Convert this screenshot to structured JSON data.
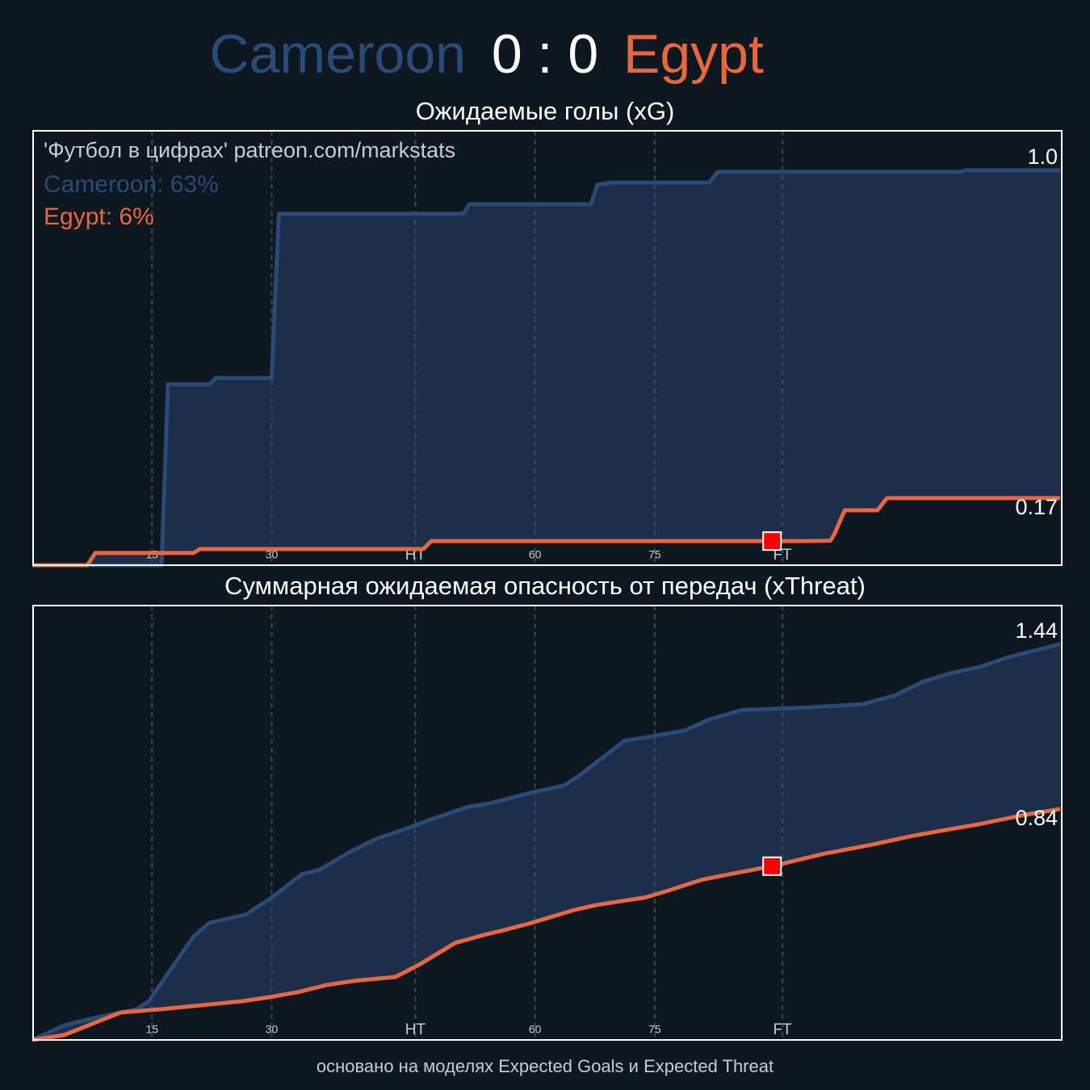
{
  "header": {
    "home": "Cameroon",
    "score": "0 : 0",
    "away": "Egypt",
    "home_color": "#2a4a78",
    "away_color": "#e8673f"
  },
  "footer": "основано на моделях Expected Goals и Expected Threat",
  "chart_data": [
    {
      "type": "line",
      "title": "Ожидаемые голы (xG)",
      "watermark": "'Футбол в цифрах' patreon.com/markstats",
      "xlim": [
        0,
        129
      ],
      "ylim": [
        0,
        1.1
      ],
      "xticks": [
        15,
        30,
        {
          "value": 48,
          "label": "HT"
        },
        {
          "value": 63,
          "label": "60"
        },
        {
          "value": 78,
          "label": "75"
        },
        {
          "value": 94,
          "label": "FT"
        }
      ],
      "fill_between": true,
      "fill_color": "#1c2e4a",
      "series": [
        {
          "label": "Cameroon: 63%",
          "color": "#2a4a78",
          "end_label": "1.0",
          "x": [
            0,
            16.2,
            17,
            22.2,
            23,
            30,
            30.9,
            54,
            54.8,
            70,
            70.8,
            72.7,
            84.8,
            85.9,
            116.2,
            117,
            128.8
          ],
          "values": [
            0,
            0,
            0.458,
            0.458,
            0.474,
            0.474,
            0.89,
            0.89,
            0.914,
            0.914,
            0.963,
            0.969,
            0.969,
            0.996,
            0.996,
            1.0,
            1.0
          ]
        },
        {
          "label": "Egypt: 6%",
          "color": "#e8673f",
          "end_label": "0.17",
          "x": [
            0,
            6.9,
            7.9,
            20.2,
            21,
            49,
            50,
            97,
            100,
            100.5,
            101.8,
            105.9,
            107.1,
            128.8
          ],
          "values": [
            0,
            0,
            0.031,
            0.031,
            0.041,
            0.041,
            0.061,
            0.061,
            0.062,
            0.078,
            0.139,
            0.139,
            0.17,
            0.17
          ]
        }
      ],
      "event_marker": {
        "x": 92.7,
        "y": 0.061,
        "color": "#ff0000"
      }
    },
    {
      "type": "line",
      "title": "Суммарная ожидаемая опасность от передач (xThreat)",
      "xlim": [
        0,
        129
      ],
      "ylim": [
        0,
        1.58
      ],
      "xticks": [
        15,
        30,
        {
          "value": 48,
          "label": "HT"
        },
        {
          "value": 63,
          "label": "60"
        },
        {
          "value": 78,
          "label": "75"
        },
        {
          "value": 94,
          "label": "FT"
        }
      ],
      "fill_between": true,
      "fill_color": "#1c2e4a",
      "series": [
        {
          "color": "#2a4a78",
          "end_label": "1.44",
          "x": [
            0,
            4,
            8.1,
            13.1,
            14.6,
            20.2,
            22.2,
            26.8,
            30.3,
            33.8,
            35.9,
            39.9,
            42.9,
            46.5,
            49.5,
            54.5,
            57.1,
            62.6,
            66.7,
            68.7,
            74.2,
            76.8,
            81.8,
            84.8,
            88.9,
            97,
            104,
            108.1,
            111.6,
            115.2,
            118.7,
            122.2,
            128.8
          ],
          "values": [
            0,
            0.053,
            0.082,
            0.112,
            0.141,
            0.376,
            0.426,
            0.456,
            0.524,
            0.603,
            0.618,
            0.685,
            0.729,
            0.765,
            0.797,
            0.847,
            0.859,
            0.9,
            0.926,
            0.965,
            1.088,
            1.1,
            1.126,
            1.165,
            1.2,
            1.209,
            1.221,
            1.253,
            1.303,
            1.335,
            1.356,
            1.391,
            1.44
          ]
        },
        {
          "color": "#e8673f",
          "end_label": "0.84",
          "x": [
            0,
            4,
            11.1,
            16.2,
            23.2,
            26.3,
            29.8,
            33.3,
            36.9,
            40.4,
            45.5,
            48.5,
            53,
            56.6,
            59.6,
            62.6,
            67.7,
            70.7,
            76.8,
            79.8,
            83.8,
            87.4,
            92.7,
            99,
            105,
            110.1,
            114.1,
            118.7,
            124.2,
            128.8
          ],
          "values": [
            0,
            0.018,
            0.1,
            0.112,
            0.132,
            0.141,
            0.156,
            0.174,
            0.2,
            0.215,
            0.229,
            0.274,
            0.353,
            0.382,
            0.403,
            0.426,
            0.471,
            0.491,
            0.518,
            0.544,
            0.582,
            0.603,
            0.632,
            0.676,
            0.709,
            0.741,
            0.762,
            0.785,
            0.818,
            0.84
          ]
        }
      ],
      "event_marker": {
        "x": 92.7,
        "y": 0.632,
        "color": "#ff0000"
      }
    }
  ]
}
